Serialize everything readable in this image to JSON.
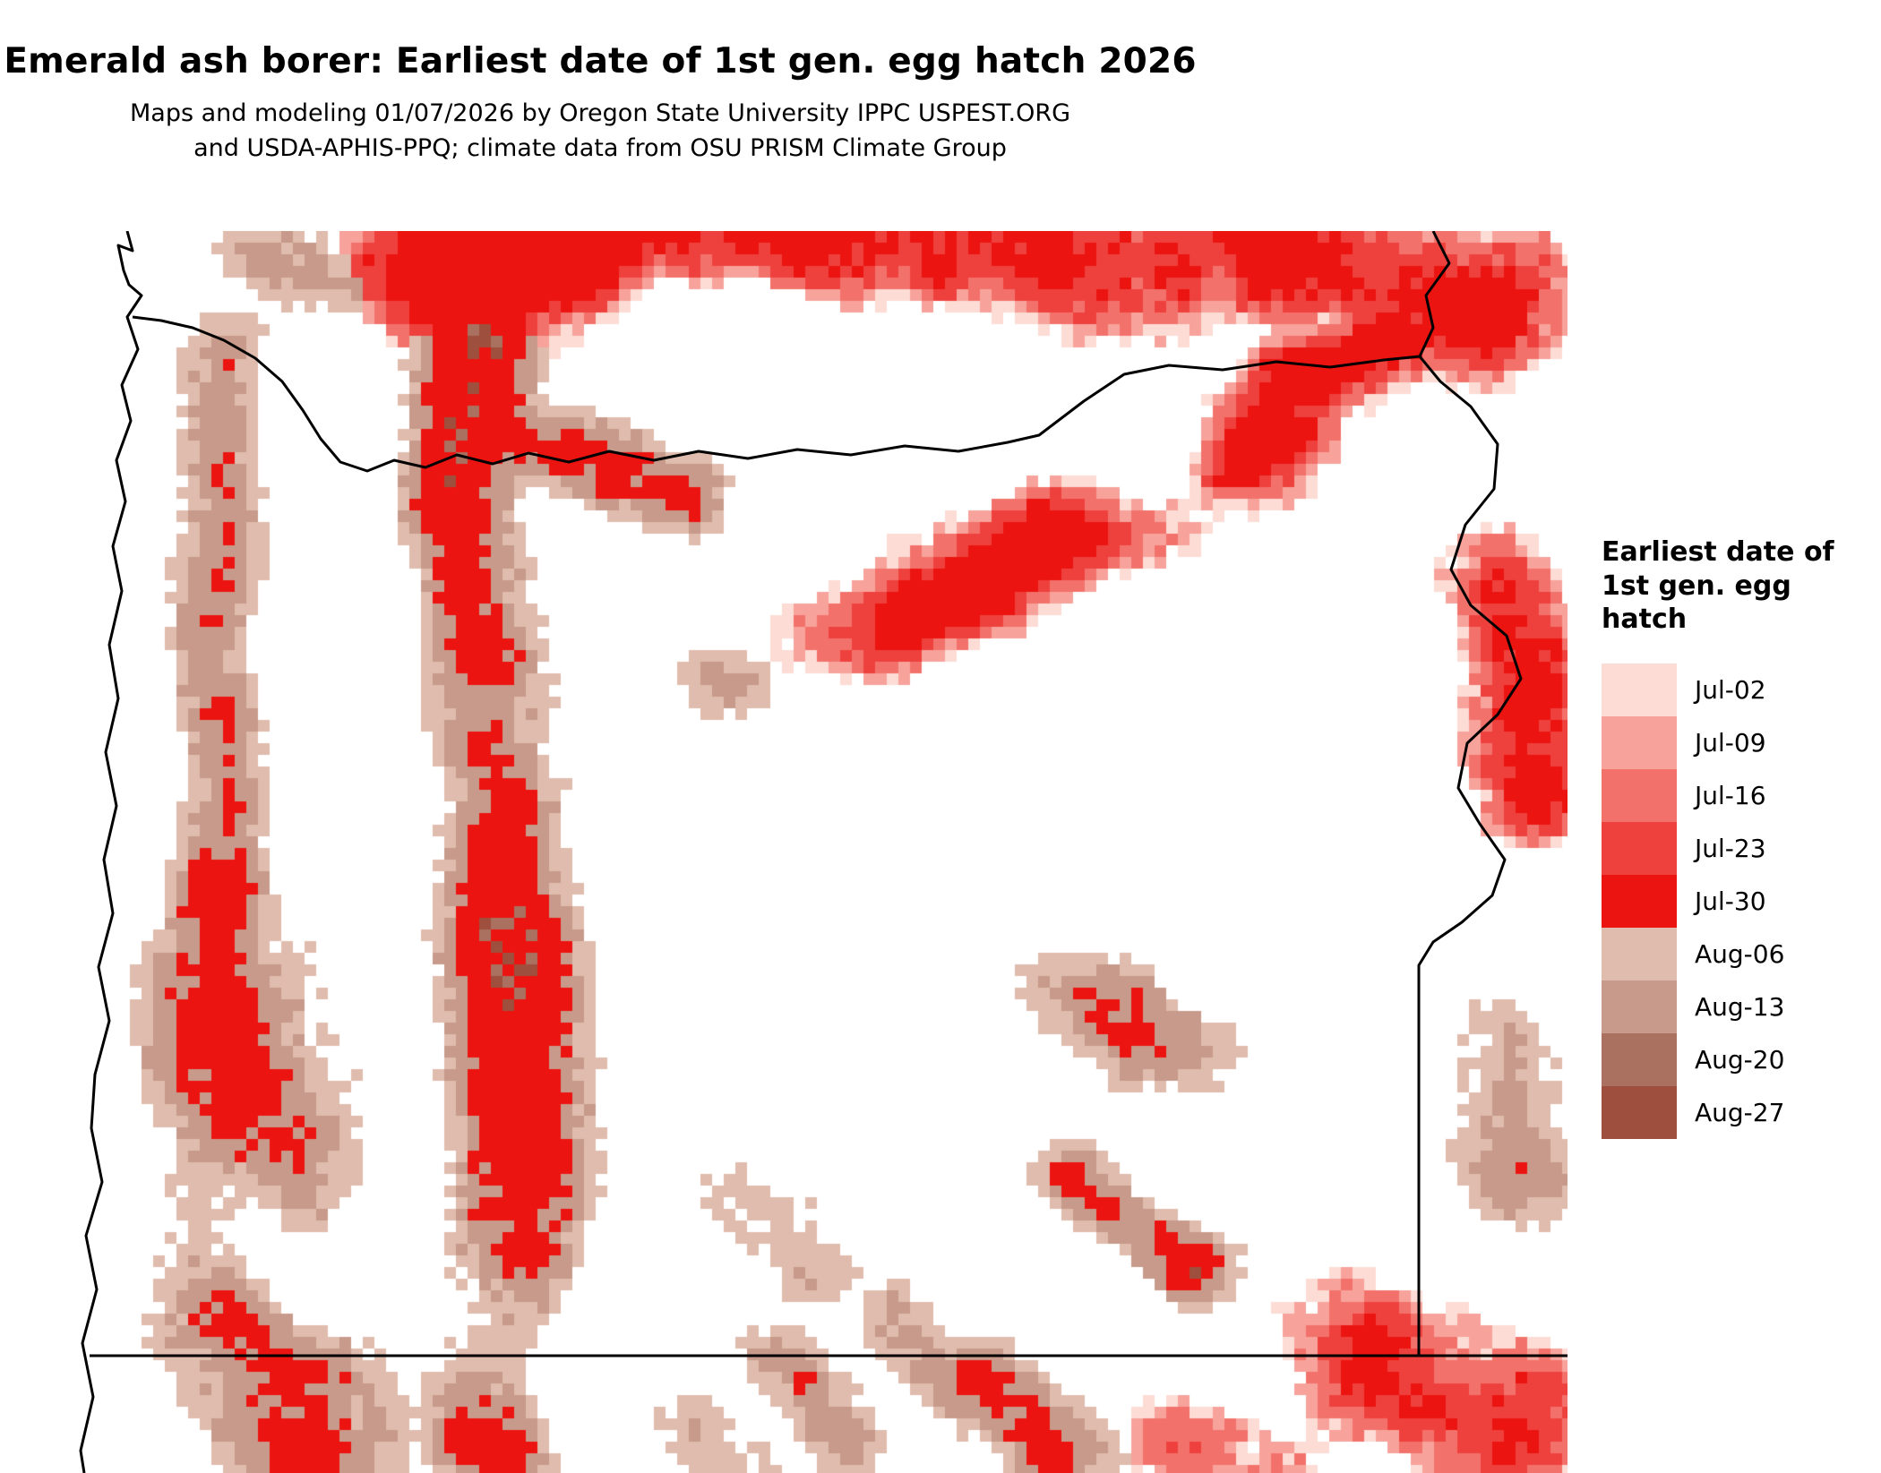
{
  "title": "Emerald ash borer: Earliest date of 1st gen. egg hatch 2026",
  "subtitle": "Maps and modeling 01/07/2026 by Oregon State University IPPC USPEST.ORG and USDA-APHIS-PPQ; climate data from OSU PRISM Climate Group",
  "legend": {
    "title": "Earliest date of 1st gen. egg hatch",
    "entries": [
      {
        "label": "Jul-02",
        "color": "#fcdcd4"
      },
      {
        "label": "Jul-09",
        "color": "#f7a39b"
      },
      {
        "label": "Jul-16",
        "color": "#f2726b"
      },
      {
        "label": "Jul-23",
        "color": "#ee413e"
      },
      {
        "label": "Jul-30",
        "color": "#ec1410"
      },
      {
        "label": "Aug-06",
        "color": "#dfbcad"
      },
      {
        "label": "Aug-13",
        "color": "#c89a8b"
      },
      {
        "label": "Aug-20",
        "color": "#aa7060"
      },
      {
        "label": "Aug-27",
        "color": "#9f4f3d"
      }
    ]
  },
  "map": {
    "no_data_color": "#ffffff",
    "boundary_color": "#000000"
  }
}
